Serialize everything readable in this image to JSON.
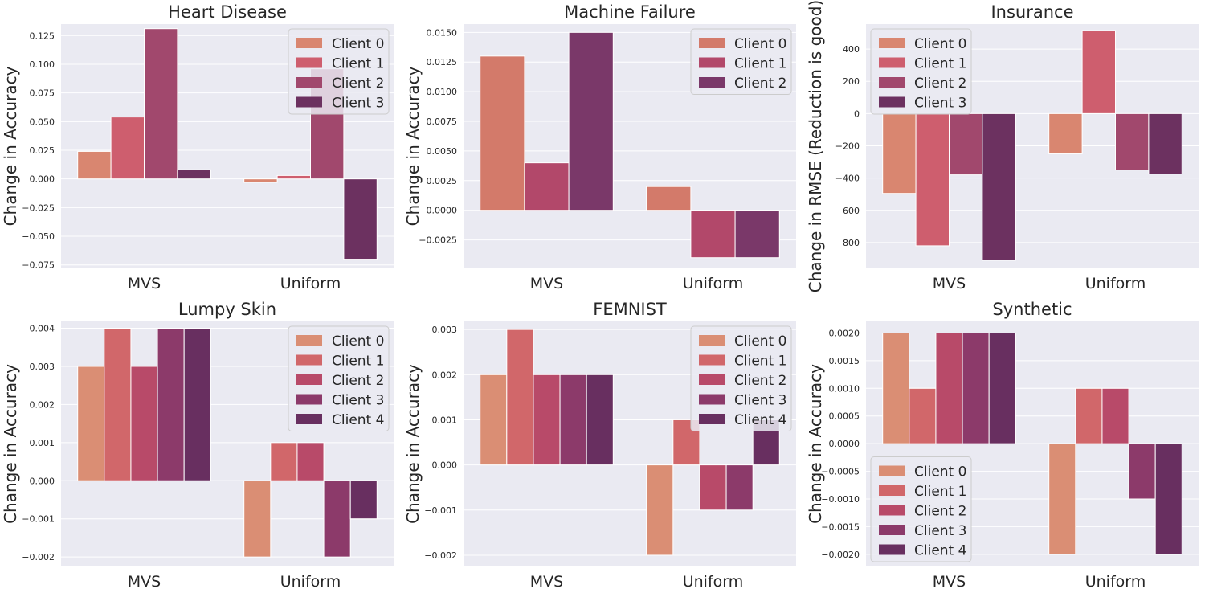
{
  "chart_data": [
    {
      "type": "bar",
      "title": "Heart Disease",
      "categories": [
        "MVS",
        "Uniform"
      ],
      "ylabel": "Change in Accuracy",
      "ylim": [
        -0.078,
        0.135
      ],
      "yticks": [
        -0.075,
        -0.05,
        -0.025,
        0.0,
        0.025,
        0.05,
        0.075,
        0.1,
        0.125
      ],
      "ytick_labels": [
        "−0.075",
        "−0.050",
        "−0.025",
        "0.000",
        "0.025",
        "0.050",
        "0.075",
        "0.100",
        "0.125"
      ],
      "legend_position": "top-right",
      "series": [
        {
          "name": "Client 0",
          "color": "#d98670",
          "values": [
            0.024,
            -0.003
          ]
        },
        {
          "name": "Client 1",
          "color": "#ce5e6e",
          "values": [
            0.054,
            0.003
          ]
        },
        {
          "name": "Client 2",
          "color": "#a1486d",
          "values": [
            0.131,
            0.096
          ]
        },
        {
          "name": "Client 3",
          "color": "#6c3160",
          "values": [
            0.008,
            -0.07
          ]
        }
      ]
    },
    {
      "type": "bar",
      "title": "Machine Failure",
      "categories": [
        "MVS",
        "Uniform"
      ],
      "ylabel": "Change in Accuracy",
      "ylim": [
        -0.0049,
        0.0157
      ],
      "yticks": [
        -0.0025,
        0.0,
        0.0025,
        0.005,
        0.0075,
        0.01,
        0.0125,
        0.015
      ],
      "ytick_labels": [
        "−0.0025",
        "0.0000",
        "0.0025",
        "0.0050",
        "0.0075",
        "0.0100",
        "0.0125",
        "0.0150"
      ],
      "legend_position": "top-right",
      "series": [
        {
          "name": "Client 0",
          "color": "#d37a6a",
          "values": [
            0.013,
            0.002
          ]
        },
        {
          "name": "Client 1",
          "color": "#b2486a",
          "values": [
            0.004,
            -0.004
          ]
        },
        {
          "name": "Client 2",
          "color": "#7a3869",
          "values": [
            0.015,
            -0.004
          ]
        }
      ]
    },
    {
      "type": "bar",
      "title": "Insurance",
      "categories": [
        "MVS",
        "Uniform"
      ],
      "ylabel": "Change in RMSE (Reduction is good)",
      "ylim": [
        -960,
        555
      ],
      "yticks": [
        -800,
        -600,
        -400,
        -200,
        0,
        200,
        400
      ],
      "ytick_labels": [
        "−800",
        "−600",
        "−400",
        "−200",
        "0",
        "200",
        "400"
      ],
      "legend_position": "top-left",
      "series": [
        {
          "name": "Client 0",
          "color": "#d98670",
          "values": [
            -495,
            -250
          ]
        },
        {
          "name": "Client 1",
          "color": "#ce5e6e",
          "values": [
            -820,
            515
          ]
        },
        {
          "name": "Client 2",
          "color": "#a1486d",
          "values": [
            -380,
            -350
          ]
        },
        {
          "name": "Client 3",
          "color": "#6c3160",
          "values": [
            -910,
            -375
          ]
        }
      ]
    },
    {
      "type": "bar",
      "title": "Lumpy Skin",
      "categories": [
        "MVS",
        "Uniform"
      ],
      "ylabel": "Change in Accuracy",
      "ylim": [
        -0.00225,
        0.00418
      ],
      "yticks": [
        -0.002,
        -0.001,
        0.0,
        0.001,
        0.002,
        0.003,
        0.004
      ],
      "ytick_labels": [
        "−0.002",
        "−0.001",
        "0.000",
        "0.001",
        "0.002",
        "0.003",
        "0.004"
      ],
      "legend_position": "top-right",
      "series": [
        {
          "name": "Client 0",
          "color": "#da8e74",
          "values": [
            0.003,
            -0.002
          ]
        },
        {
          "name": "Client 1",
          "color": "#d1676a",
          "values": [
            0.004,
            0.001
          ]
        },
        {
          "name": "Client 2",
          "color": "#b84a69",
          "values": [
            0.003,
            0.001
          ]
        },
        {
          "name": "Client 3",
          "color": "#8c3a6a",
          "values": [
            0.004,
            -0.002
          ]
        },
        {
          "name": "Client 4",
          "color": "#682f60",
          "values": [
            0.004,
            -0.001
          ]
        }
      ]
    },
    {
      "type": "bar",
      "title": "FEMNIST",
      "categories": [
        "MVS",
        "Uniform"
      ],
      "ylabel": "Change in Accuracy",
      "ylim": [
        -0.00225,
        0.00318
      ],
      "yticks": [
        -0.002,
        -0.001,
        0.0,
        0.001,
        0.002,
        0.003
      ],
      "ytick_labels": [
        "−0.002",
        "−0.001",
        "0.000",
        "0.001",
        "0.002",
        "0.003"
      ],
      "legend_position": "top-right",
      "series": [
        {
          "name": "Client 0",
          "color": "#da8e74",
          "values": [
            0.002,
            -0.002
          ]
        },
        {
          "name": "Client 1",
          "color": "#d1676a",
          "values": [
            0.003,
            0.001
          ]
        },
        {
          "name": "Client 2",
          "color": "#b84a69",
          "values": [
            0.002,
            -0.001
          ]
        },
        {
          "name": "Client 3",
          "color": "#8c3a6a",
          "values": [
            0.002,
            -0.001
          ]
        },
        {
          "name": "Client 4",
          "color": "#682f60",
          "values": [
            0.002,
            0.001
          ]
        }
      ]
    },
    {
      "type": "bar",
      "title": "Synthetic",
      "categories": [
        "MVS",
        "Uniform"
      ],
      "ylabel": "Change in Accuracy",
      "ylim": [
        -0.00222,
        0.00221
      ],
      "yticks": [
        -0.002,
        -0.0015,
        -0.001,
        -0.0005,
        0.0,
        0.0005,
        0.001,
        0.0015,
        0.002
      ],
      "ytick_labels": [
        "−0.0020",
        "−0.0015",
        "−0.0010",
        "−0.0005",
        "0.0000",
        "0.0005",
        "0.0010",
        "0.0015",
        "0.0020"
      ],
      "legend_position": "bottom-left",
      "series": [
        {
          "name": "Client 0",
          "color": "#da8e74",
          "values": [
            0.002,
            -0.002
          ]
        },
        {
          "name": "Client 1",
          "color": "#d1676a",
          "values": [
            0.001,
            0.001
          ]
        },
        {
          "name": "Client 2",
          "color": "#b84a69",
          "values": [
            0.002,
            0.001
          ]
        },
        {
          "name": "Client 3",
          "color": "#8c3a6a",
          "values": [
            0.002,
            -0.001
          ]
        },
        {
          "name": "Client 4",
          "color": "#682f60",
          "values": [
            0.002,
            -0.002
          ]
        }
      ]
    }
  ]
}
